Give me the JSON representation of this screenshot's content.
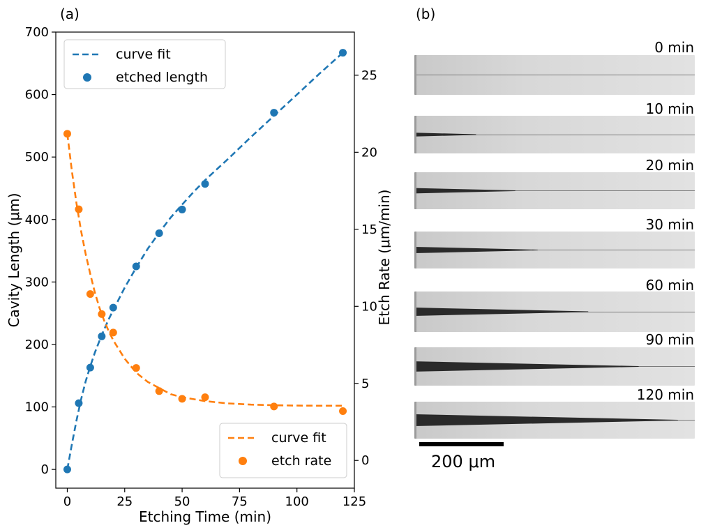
{
  "panels": {
    "a_label": "(a)",
    "b_label": "(b)"
  },
  "chart_data": {
    "type": "line",
    "xlabel": "Etching Time (min)",
    "ylabel": "Cavity Length (μm)",
    "y2label": "Etch Rate (μm/min)",
    "xlim": [
      -5,
      125
    ],
    "ylim": [
      -30,
      700
    ],
    "y2lim": [
      -1.8,
      27.8
    ],
    "xticks": [
      "0",
      "25",
      "50",
      "75",
      "100",
      "125"
    ],
    "yticks": [
      "0",
      "100",
      "200",
      "300",
      "400",
      "500",
      "600",
      "700"
    ],
    "y2ticks": [
      "0",
      "5",
      "10",
      "15",
      "20",
      "25"
    ],
    "grid": false,
    "legends": [
      {
        "placement": "top-left",
        "entries": [
          "curve fit",
          "etched length"
        ]
      },
      {
        "placement": "bottom-right",
        "entries": [
          "curve fit",
          "etch rate"
        ]
      }
    ],
    "series": [
      {
        "name": "etched length",
        "axis": "left",
        "kind": "scatter",
        "color": "#1f77b4",
        "x": [
          0,
          5,
          10,
          15,
          20,
          30,
          40,
          50,
          60,
          90,
          120
        ],
        "y": [
          0,
          106,
          163,
          213,
          259,
          325,
          378,
          416,
          457,
          571,
          667
        ]
      },
      {
        "name": "curve fit",
        "axis": "left",
        "kind": "dashed-line",
        "color": "#1f77b4",
        "x": [
          0,
          2,
          4,
          6,
          8,
          10,
          12,
          15,
          18,
          20,
          25,
          30,
          35,
          40,
          45,
          50,
          55,
          60,
          70,
          80,
          90,
          100,
          110,
          120
        ],
        "y": [
          0,
          40,
          78,
          112,
          141,
          165,
          187,
          215,
          240,
          255,
          291,
          323,
          353,
          379,
          403,
          424,
          444,
          463,
          497,
          532,
          566,
          600,
          634,
          667
        ]
      },
      {
        "name": "etch rate",
        "axis": "right",
        "kind": "scatter",
        "color": "#ff7f0e",
        "x": [
          0,
          5,
          10,
          15,
          20,
          30,
          40,
          50,
          60,
          90,
          120
        ],
        "y": [
          21.2,
          16.3,
          10.8,
          9.5,
          8.3,
          6.0,
          4.5,
          4.0,
          4.1,
          3.5,
          3.2
        ]
      },
      {
        "name": "curve fit",
        "axis": "right",
        "kind": "dashed-line",
        "color": "#ff7f0e",
        "x": [
          0,
          2,
          4,
          6,
          8,
          10,
          12,
          14,
          16,
          18,
          20,
          25,
          30,
          35,
          40,
          45,
          50,
          60,
          70,
          80,
          90,
          100,
          110,
          120
        ],
        "y": [
          21.2,
          18.8,
          16.7,
          14.9,
          13.4,
          12.1,
          10.9,
          9.9,
          9.1,
          8.4,
          7.8,
          6.6,
          5.7,
          5.1,
          4.7,
          4.3,
          4.1,
          3.85,
          3.7,
          3.62,
          3.58,
          3.56,
          3.55,
          3.55
        ]
      }
    ]
  },
  "micrographs": {
    "labels": [
      "0 min",
      "10 min",
      "20 min",
      "30 min",
      "60 min",
      "90 min",
      "120 min"
    ],
    "etched_fraction": [
      0.0,
      0.22,
      0.36,
      0.44,
      0.62,
      0.8,
      0.94
    ],
    "scale_bar_label": "200 μm"
  }
}
